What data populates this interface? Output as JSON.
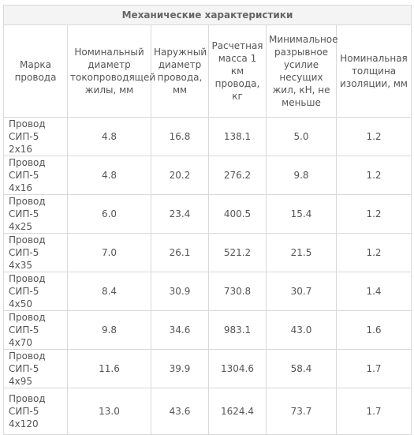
{
  "table": {
    "title": "Механические характеристики",
    "headers": [
      "Марка провода",
      "Номинальный диаметр токопроводящей жилы, мм",
      "Наружный диаметр провода, мм",
      "Расчетная масса 1 км провода, кг",
      "Минимальное разрывное усилие несущих жил, кН, не меньше",
      "Номинальная толщина изоляции, мм"
    ],
    "rows": [
      [
        "Провод СИП-5 2x16",
        "4.8",
        "16.8",
        "138.1",
        "5.0",
        "1.2"
      ],
      [
        "Провод СИП-5 4x16",
        "4.8",
        "20.2",
        "276.2",
        "9.8",
        "1.2"
      ],
      [
        "Провод СИП-5 4x25",
        "6.0",
        "23.4",
        "400.5",
        "15.4",
        "1.2"
      ],
      [
        "Провод СИП-5 4x35",
        "7.0",
        "26.1",
        "521.2",
        "21.5",
        "1.2"
      ],
      [
        "Провод СИП-5 4x50",
        "8.4",
        "30.9",
        "730.8",
        "30.7",
        "1.4"
      ],
      [
        "Провод СИП-5 4x70",
        "9.8",
        "34.6",
        "983.1",
        "43.0",
        "1.6"
      ],
      [
        "Провод СИП-5 4x95",
        "11.6",
        "39.9",
        "1304.6",
        "58.4",
        "1.7"
      ],
      [
        "Провод СИП-5 4x120",
        "13.0",
        "43.6",
        "1624.4",
        "73.7",
        "1.7"
      ]
    ]
  }
}
